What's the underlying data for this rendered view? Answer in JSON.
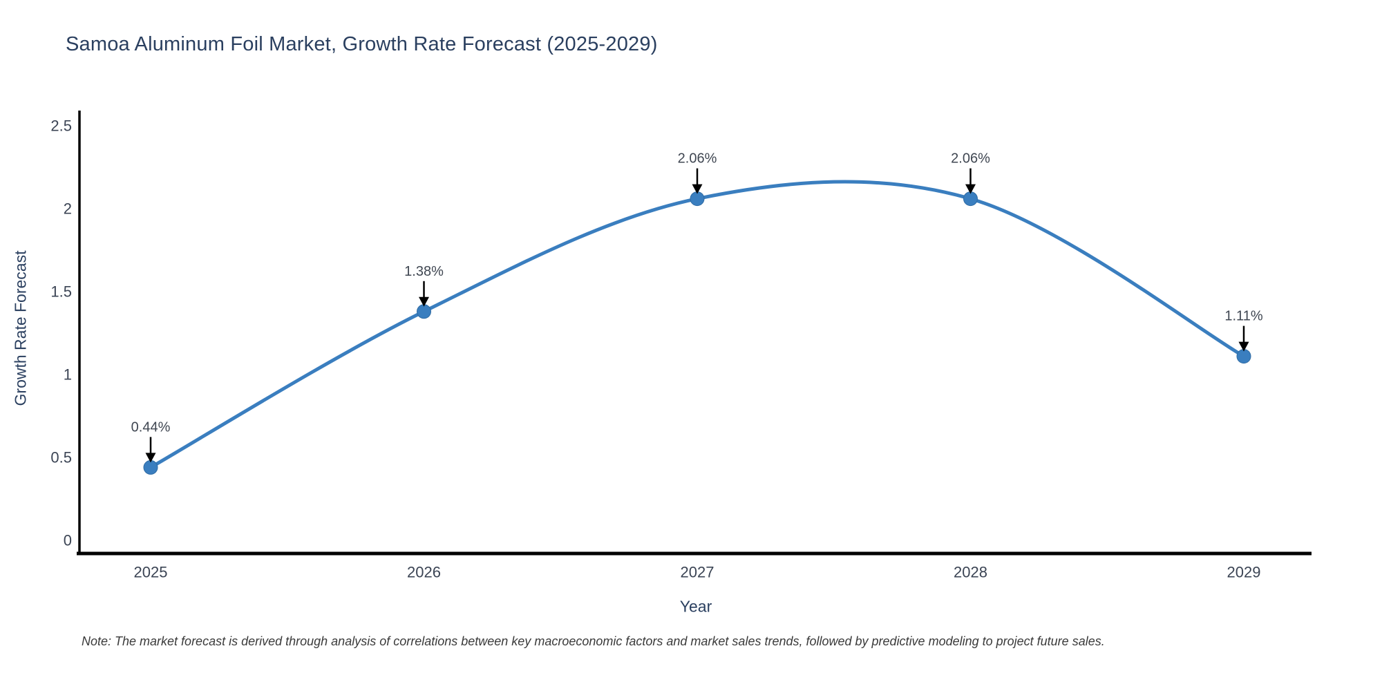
{
  "chart": {
    "title": "Samoa Aluminum Foil Market, Growth Rate Forecast (2025-2029)",
    "xlabel": "Year",
    "ylabel": "Growth Rate Forecast",
    "note": "Note: The market forecast is derived through analysis of correlations between key macroeconomic factors and market sales trends, followed by predictive modeling to project future sales."
  },
  "chart_data": {
    "type": "line",
    "line_shape": "spline",
    "title": "Samoa Aluminum Foil Market, Growth Rate Forecast (2025-2029)",
    "xlabel": "Year",
    "ylabel": "Growth Rate Forecast",
    "x": [
      2025,
      2026,
      2027,
      2028,
      2029
    ],
    "values": [
      0.44,
      1.38,
      2.06,
      2.06,
      1.11
    ],
    "point_labels": [
      "0.44%",
      "1.38%",
      "2.06%",
      "2.06%",
      "1.11%"
    ],
    "xtick_labels": [
      "2025",
      "2026",
      "2027",
      "2028",
      "2029"
    ],
    "yticks": [
      0,
      0.5,
      1,
      1.5,
      2,
      2.5
    ],
    "ytick_labels": [
      "0",
      "0.5",
      "1",
      "1.5",
      "2",
      "2.5"
    ],
    "ylim": [
      0,
      2.5
    ],
    "grid": false,
    "legend": "none",
    "markers": true,
    "annotations_have_arrows": true
  },
  "colors": {
    "line": "#3a7ebf",
    "marker_fill": "#3a7ebf",
    "marker_edge": "#2f6ba3",
    "axis_line": "#000000",
    "arrow": "#000000",
    "title_text": "#2a3f5f",
    "axis_title_text": "#2a3f5f",
    "tick_text": "#3b4454",
    "annotation_text": "#3f4651",
    "note_text": "#3a3a3a"
  }
}
